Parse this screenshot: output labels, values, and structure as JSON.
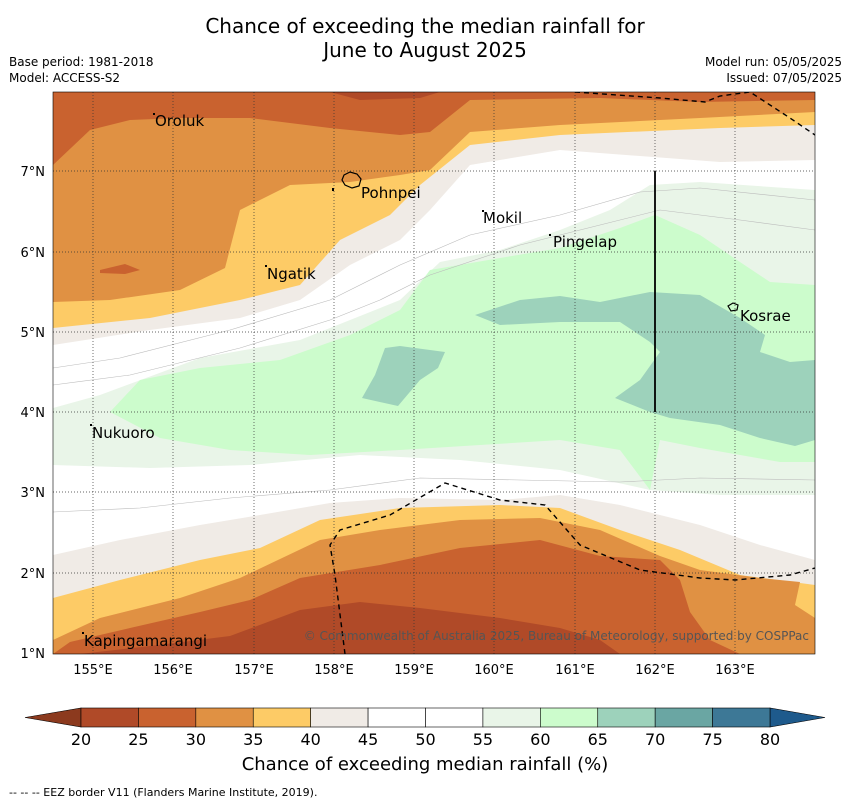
{
  "title_line1": "Chance of exceeding the median rainfall for",
  "title_line2": "June to August 2025",
  "base_period": "Base period: 1981-2018",
  "model": "Model: ACCESS-S2",
  "model_run": "Model run: 05/05/2025",
  "issued": "Issued: 07/05/2025",
  "copyright": "© Commonwealth of Australia 2025, Bureau of Meteorology, supported by COSPPac",
  "colorbar_label": "Chance of exceeding median rainfall (%)",
  "footnote": "--  --  -- EEZ border V11 (Flanders Marine Institute, 2019).",
  "lon_ticks": [
    "155°E",
    "156°E",
    "157°E",
    "158°E",
    "159°E",
    "160°E",
    "161°E",
    "162°E",
    "163°E"
  ],
  "lat_ticks": [
    "1°N",
    "2°N",
    "3°N",
    "4°N",
    "5°N",
    "6°N",
    "7°N"
  ],
  "places": [
    {
      "name": "Oroluk"
    },
    {
      "name": "Pohnpei"
    },
    {
      "name": "Mokil"
    },
    {
      "name": "Pingelap"
    },
    {
      "name": "Ngatik"
    },
    {
      "name": "Kosrae"
    },
    {
      "name": "Nukuoro"
    },
    {
      "name": "Kapingamarangi"
    }
  ],
  "colorbar": {
    "ticks": [
      "20",
      "25",
      "30",
      "35",
      "40",
      "45",
      "50",
      "55",
      "60",
      "65",
      "70",
      "75",
      "80"
    ],
    "colors": [
      "#b04a28",
      "#c9622f",
      "#e09143",
      "#fdcb66",
      "#f0ebe6",
      "#ffffff",
      "#ffffff",
      "#e9f5e8",
      "#ccfccc",
      "#9dd2bb",
      "#6aa6a3",
      "#3d7896"
    ],
    "extend_low": "#8c3a1e",
    "extend_high": "#1e5a8c"
  },
  "colors": {
    "c20_25": "#b04a28",
    "c25_30": "#c9622f",
    "c30_35": "#e09143",
    "c35_40": "#fdcb66",
    "c40_45": "#f0ebe6",
    "c55_60": "#e9f5e8",
    "c60_65": "#ccfccc",
    "c65_70": "#9dd2bb"
  }
}
